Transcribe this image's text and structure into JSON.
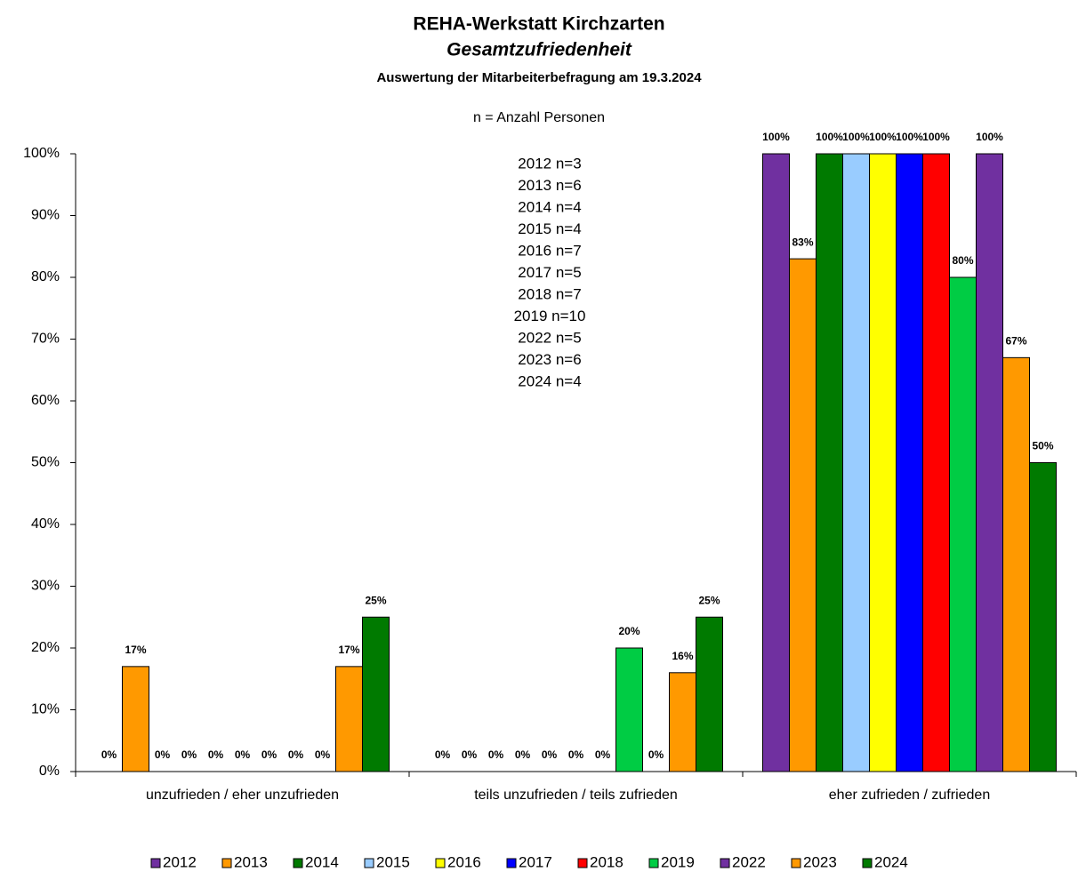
{
  "chart_data": {
    "type": "bar",
    "title": "REHA-Werkstatt Kirchzarten",
    "subtitle": "Gesamtzufriedenheit",
    "caption": "Auswertung der Mitarbeiterbefragung am 19.3.2024",
    "annotation": "n = Anzahl Personen",
    "n_list": [
      "2012 n=3",
      "2013 n=6",
      "2014 n=4",
      "2015 n=4",
      "2016 n=7",
      "2017 n=5",
      "2018 n=7",
      "2019 n=10",
      "2022 n=5",
      "2023 n=6",
      "2024 n=4"
    ],
    "categories": [
      "unzufrieden / eher unzufrieden",
      "teils unzufrieden / teils zufrieden",
      "eher zufrieden / zufrieden"
    ],
    "series": [
      {
        "name": "2012",
        "color": "#7030a0",
        "values": [
          0,
          0,
          100
        ],
        "value_labels": [
          "0%",
          "0%",
          "100%"
        ]
      },
      {
        "name": "2013",
        "color": "#ff9900",
        "values": [
          17,
          0,
          83
        ],
        "value_labels": [
          "17%",
          "0%",
          "83%"
        ]
      },
      {
        "name": "2014",
        "color": "#007a00",
        "values": [
          0,
          0,
          100
        ],
        "value_labels": [
          "0%",
          "0%",
          "100%"
        ]
      },
      {
        "name": "2015",
        "color": "#99ccff",
        "values": [
          0,
          0,
          100
        ],
        "value_labels": [
          "0%",
          "0%",
          "100%"
        ]
      },
      {
        "name": "2016",
        "color": "#ffff00",
        "values": [
          0,
          0,
          100
        ],
        "value_labels": [
          "0%",
          "0%",
          "100%"
        ]
      },
      {
        "name": "2017",
        "color": "#0000ff",
        "values": [
          0,
          0,
          100
        ],
        "value_labels": [
          "0%",
          "0%",
          "100%"
        ]
      },
      {
        "name": "2018",
        "color": "#ff0000",
        "values": [
          0,
          0,
          100
        ],
        "value_labels": [
          "0%",
          "0%",
          "100%"
        ]
      },
      {
        "name": "2019",
        "color": "#00cc44",
        "values": [
          0,
          20,
          80
        ],
        "value_labels": [
          "0%",
          "20%",
          "80%"
        ]
      },
      {
        "name": "2022",
        "color": "#7030a0",
        "values": [
          0,
          0,
          100
        ],
        "value_labels": [
          "0%",
          "0%",
          "100%"
        ]
      },
      {
        "name": "2023",
        "color": "#ff9900",
        "values": [
          17,
          16,
          67
        ],
        "value_labels": [
          "17%",
          "16%",
          "67%"
        ]
      },
      {
        "name": "2024",
        "color": "#007a00",
        "values": [
          25,
          25,
          50
        ],
        "value_labels": [
          "25%",
          "25%",
          "50%"
        ]
      }
    ],
    "ylim": [
      0,
      100
    ],
    "yticks": [
      {
        "value": 0,
        "label": "0%"
      },
      {
        "value": 10,
        "label": "10%"
      },
      {
        "value": 20,
        "label": "20%"
      },
      {
        "value": 30,
        "label": "30%"
      },
      {
        "value": 40,
        "label": "40%"
      },
      {
        "value": 50,
        "label": "50%"
      },
      {
        "value": 60,
        "label": "60%"
      },
      {
        "value": 70,
        "label": "70%"
      },
      {
        "value": 80,
        "label": "80%"
      },
      {
        "value": 90,
        "label": "90%"
      },
      {
        "value": 100,
        "label": "100%"
      }
    ],
    "grid": false,
    "legend": "bottom"
  }
}
